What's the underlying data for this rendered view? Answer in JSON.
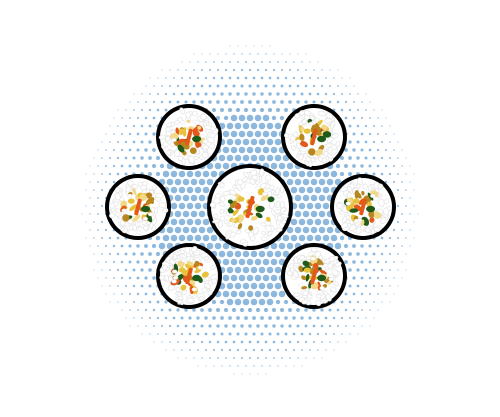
{
  "illustration": {
    "subject": "kimbap-rolls-on-halftone-dots",
    "roll_count": 7,
    "colors": {
      "background": "#ffffff",
      "halftone_dot": "#8db8dd",
      "seaweed": "#000000",
      "rice": "#ffffff",
      "rice_shadow": "#e6e6e6",
      "carrot": "#e2591b",
      "egg": "#e8c23a",
      "burdock": "#b8861f",
      "spinach": "#1f5a1a",
      "ham": "#f2d98a"
    }
  }
}
